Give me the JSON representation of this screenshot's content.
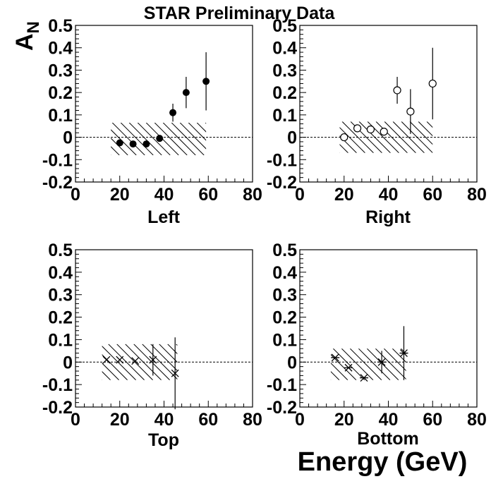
{
  "figure": {
    "title": "STAR Preliminary Data",
    "ylabel": "A",
    "ylabel_sub": "N",
    "xlabel": "Energy (GeV)"
  },
  "chart_data": [
    {
      "type": "scatter",
      "panel_label": "Left",
      "marker": "filled-circle",
      "xlim": [
        0,
        80
      ],
      "ylim": [
        -0.2,
        0.5
      ],
      "xticks": [
        "0",
        "20",
        "40",
        "60",
        "80"
      ],
      "yticks": [
        "-0.2",
        "-0.1",
        "0",
        "0.1",
        "0.2",
        "0.3",
        "0.4",
        "0.5"
      ],
      "reference_line_y": 0,
      "points": [
        {
          "x": 20,
          "y": -0.025,
          "err": 0.0
        },
        {
          "x": 26,
          "y": -0.03,
          "err": 0.0
        },
        {
          "x": 32,
          "y": -0.03,
          "err": 0.0
        },
        {
          "x": 38,
          "y": -0.005,
          "err": 0.0
        },
        {
          "x": 44,
          "y": 0.11,
          "err": 0.04
        },
        {
          "x": 50,
          "y": 0.2,
          "err": 0.07
        },
        {
          "x": 59,
          "y": 0.25,
          "err": 0.13
        }
      ],
      "systematic_band": {
        "x": [
          16,
          59
        ],
        "y": [
          -0.08,
          0.065
        ]
      }
    },
    {
      "type": "scatter",
      "panel_label": "Right",
      "marker": "open-circle",
      "xlim": [
        0,
        80
      ],
      "ylim": [
        -0.2,
        0.5
      ],
      "xticks": [
        "0",
        "20",
        "40",
        "60",
        "80"
      ],
      "yticks": [
        "-0.2",
        "-0.1",
        "0",
        "0.1",
        "0.2",
        "0.3",
        "0.4",
        "0.5"
      ],
      "reference_line_y": 0,
      "points": [
        {
          "x": 20,
          "y": 0.0,
          "err": 0.0
        },
        {
          "x": 26,
          "y": 0.04,
          "err": 0.0
        },
        {
          "x": 32,
          "y": 0.035,
          "err": 0.0
        },
        {
          "x": 38,
          "y": 0.025,
          "err": 0.0
        },
        {
          "x": 44,
          "y": 0.21,
          "err": 0.06
        },
        {
          "x": 50,
          "y": 0.115,
          "err": 0.1
        },
        {
          "x": 60,
          "y": 0.24,
          "err": 0.16
        }
      ],
      "systematic_band": {
        "x": [
          18,
          60
        ],
        "y": [
          -0.07,
          0.07
        ]
      }
    },
    {
      "type": "scatter",
      "panel_label": "Top",
      "marker": "x-cross",
      "xlim": [
        0,
        80
      ],
      "ylim": [
        -0.2,
        0.5
      ],
      "xticks": [
        "0",
        "20",
        "40",
        "60",
        "80"
      ],
      "yticks": [
        "-0.2",
        "-0.1",
        "0",
        "0.1",
        "0.2",
        "0.3",
        "0.4",
        "0.5"
      ],
      "reference_line_y": 0,
      "points": [
        {
          "x": 14,
          "y": 0.01,
          "err": 0.0
        },
        {
          "x": 20,
          "y": 0.01,
          "err": 0.0
        },
        {
          "x": 27,
          "y": 0.005,
          "err": 0.0
        },
        {
          "x": 35,
          "y": 0.01,
          "err": 0.07
        },
        {
          "x": 45,
          "y": -0.05,
          "err": 0.16
        }
      ],
      "systematic_band": {
        "x": [
          12,
          46
        ],
        "y": [
          -0.08,
          0.08
        ]
      }
    },
    {
      "type": "scatter",
      "panel_label": "Bottom",
      "marker": "star",
      "xlim": [
        0,
        80
      ],
      "ylim": [
        -0.2,
        0.5
      ],
      "xticks": [
        "0",
        "20",
        "40",
        "60",
        "80"
      ],
      "yticks": [
        "-0.2",
        "-0.1",
        "0",
        "0.1",
        "0.2",
        "0.3",
        "0.4",
        "0.5"
      ],
      "reference_line_y": 0,
      "points": [
        {
          "x": 16,
          "y": 0.02,
          "err": 0.0
        },
        {
          "x": 22,
          "y": -0.025,
          "err": 0.0
        },
        {
          "x": 29,
          "y": -0.07,
          "err": 0.0
        },
        {
          "x": 37,
          "y": 0.0,
          "err": 0.05
        },
        {
          "x": 47,
          "y": 0.04,
          "err": 0.12
        }
      ],
      "systematic_band": {
        "x": [
          14,
          48
        ],
        "y": [
          -0.08,
          0.06
        ]
      }
    }
  ]
}
